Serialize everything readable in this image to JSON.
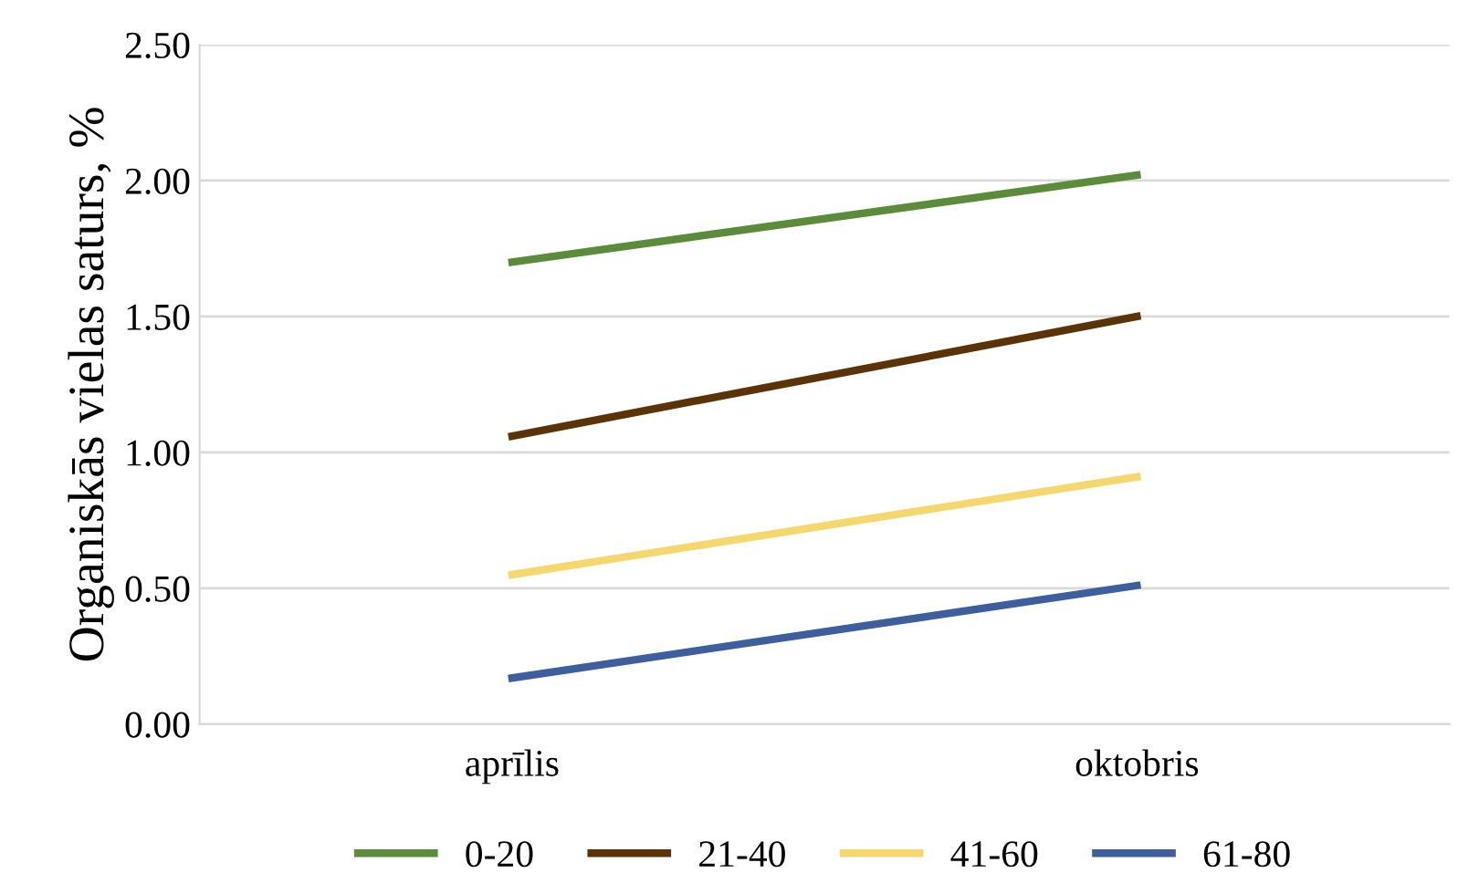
{
  "chart_data": {
    "type": "line",
    "ylabel": "Organiskās vielas saturs, %",
    "categories": [
      "aprīlis",
      "oktobris"
    ],
    "series": [
      {
        "name": "0-20",
        "color": "#5b8c3a",
        "values": [
          1.7,
          2.02
        ]
      },
      {
        "name": "21-40",
        "color": "#5c3307",
        "values": [
          1.06,
          1.5
        ]
      },
      {
        "name": "41-60",
        "color": "#f5d76e",
        "values": [
          0.55,
          0.91
        ]
      },
      {
        "name": "61-80",
        "color": "#3e5f9e",
        "values": [
          0.17,
          0.51
        ]
      }
    ],
    "ylim": [
      0,
      2.5
    ],
    "yticks": [
      {
        "value": 0,
        "label": "0.00"
      },
      {
        "value": 0.5,
        "label": "0.50"
      },
      {
        "value": 1,
        "label": "1.00"
      },
      {
        "value": 1.5,
        "label": "1.50"
      },
      {
        "value": 2,
        "label": "2.00"
      },
      {
        "value": 2.5,
        "label": "2.50"
      }
    ],
    "grid": "y",
    "legend": "bottom",
    "marker": "none",
    "line_style": "solid"
  }
}
